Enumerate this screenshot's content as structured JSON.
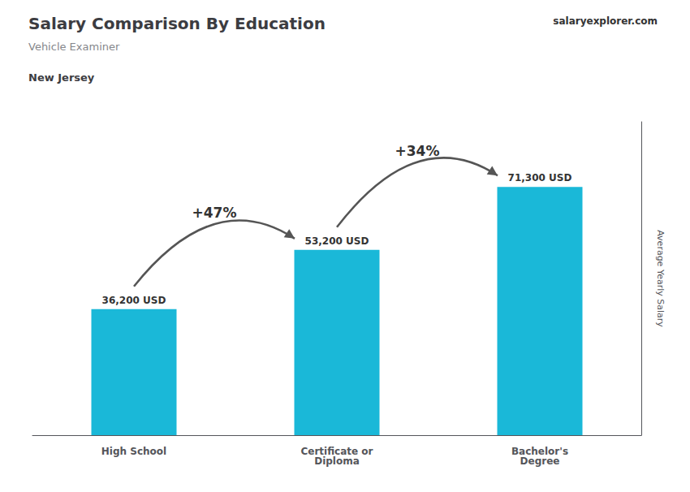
{
  "chart_data": {
    "type": "bar",
    "title": "Salary Comparison By Education",
    "subtitle": [
      "Vehicle Examiner",
      "New Jersey"
    ],
    "ylabel": "Average Yearly Salary",
    "categories": [
      "High School",
      "Certificate or\nDiploma",
      "Bachelor's\nDegree"
    ],
    "values": [
      36200,
      53200,
      71300
    ],
    "value_labels": [
      "36,200 USD",
      "53,200 USD",
      "71,300 USD"
    ],
    "data_labels": true,
    "color": "#1ab8d8",
    "ylim": [
      0,
      90000
    ],
    "grid": false,
    "tick_labels": "x",
    "annotations": [
      {
        "text": "+47%",
        "from": "High School",
        "to": "Certificate or\nDiploma"
      },
      {
        "text": "+34%",
        "from": "Certificate or\nDiploma",
        "to": "Bachelor's\nDegree"
      }
    ],
    "source": "salaryexplorer.com"
  }
}
